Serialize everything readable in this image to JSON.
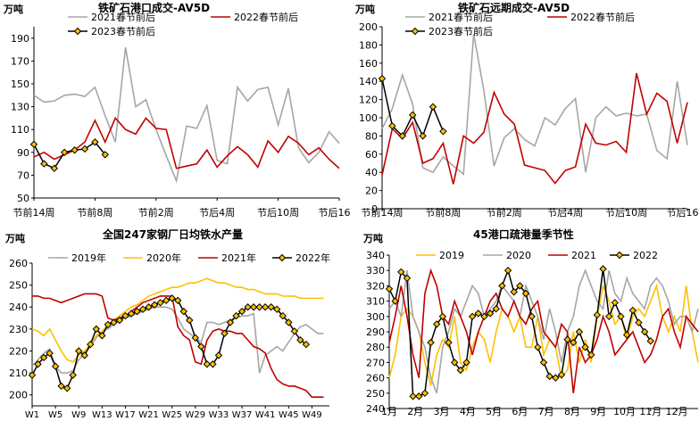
{
  "colors": {
    "gray": "#a6a6a6",
    "red": "#c00000",
    "yellow": "#ffc000",
    "black": "#000000",
    "marker_fill": "#ffc000"
  },
  "chart_data": [
    {
      "type": "line",
      "title": "铁矿石港口成交-AV5D",
      "ylabel": "万吨",
      "ylim": [
        50,
        200
      ],
      "yticks": [
        50,
        70,
        90,
        110,
        130,
        150,
        170,
        190
      ],
      "x_tick_labels": [
        "节前14周",
        "节前8周",
        "节前2周",
        "节后4周",
        "节后10周",
        "节后16周"
      ],
      "x_count": 31,
      "legend": [
        "2021春节前后",
        "2022春节前后",
        "2023春节前后"
      ],
      "series": [
        {
          "name": "2021春节前后",
          "color": "gray",
          "x_start": 0,
          "values": [
            140,
            134,
            135,
            140,
            141,
            139,
            147,
            122,
            99,
            182,
            130,
            136,
            110,
            87,
            65,
            113,
            111,
            131,
            83,
            80,
            147,
            135,
            145,
            147,
            114,
            146,
            94,
            81,
            90,
            108,
            98
          ]
        },
        {
          "name": "2022春节前后",
          "color": "red",
          "x_start": 0,
          "values": [
            86,
            90,
            84,
            88,
            92,
            99,
            118,
            99,
            120,
            110,
            106,
            120,
            111,
            110,
            76,
            78,
            80,
            92,
            77,
            87,
            95,
            88,
            77,
            100,
            90,
            104,
            98,
            88,
            94,
            84,
            76
          ]
        },
        {
          "name": "2023春节前后",
          "color": "black",
          "x_start": 0,
          "marker": true,
          "values": [
            97,
            80,
            76,
            90,
            92,
            93,
            99,
            88
          ]
        }
      ]
    },
    {
      "type": "line",
      "title": "铁矿石远期成交-AV5D",
      "ylabel": "万吨",
      "ylim": [
        0,
        200
      ],
      "yticks": [
        0,
        20,
        40,
        60,
        80,
        100,
        120,
        140,
        160,
        180,
        200
      ],
      "x_tick_labels": [
        "节前14周",
        "节前8周",
        "节前2周",
        "节后4周",
        "节后10周",
        "节后16周"
      ],
      "x_count": 31,
      "legend": [
        "2021春节前后",
        "2022春节前后",
        "2023春节前后"
      ],
      "series": [
        {
          "name": "2021春节前后",
          "color": "gray",
          "x_start": 0,
          "values": [
            88,
            110,
            147,
            115,
            45,
            40,
            57,
            47,
            38,
            192,
            130,
            47,
            78,
            88,
            76,
            69,
            100,
            92,
            110,
            121,
            40,
            100,
            112,
            102,
            105,
            102,
            104,
            64,
            55,
            140,
            70
          ]
        },
        {
          "name": "2022春节前后",
          "color": "red",
          "x_start": 0,
          "values": [
            37,
            88,
            77,
            95,
            50,
            55,
            72,
            27,
            80,
            72,
            84,
            128,
            104,
            93,
            48,
            45,
            42,
            28,
            42,
            46,
            93,
            72,
            70,
            74,
            62,
            149,
            104,
            127,
            118,
            72,
            117
          ]
        },
        {
          "name": "2023春节前后",
          "color": "black",
          "x_start": 0,
          "marker": true,
          "values": [
            143,
            91,
            80,
            103,
            80,
            112,
            85
          ]
        }
      ]
    },
    {
      "type": "line",
      "title": "全国247家钢厂日均铁水产量",
      "ylabel": "万吨",
      "ylim": [
        195,
        260
      ],
      "yticks": [
        200,
        210,
        220,
        230,
        240,
        250,
        260
      ],
      "x_tick_labels": [
        "W1",
        "W5",
        "W9",
        "W13",
        "W17",
        "W21",
        "W25",
        "W29",
        "W33",
        "W37",
        "W41",
        "W45",
        "W49"
      ],
      "x_count": 52,
      "legend": [
        "2019年",
        "2020年",
        "2021年",
        "2022年"
      ],
      "series": [
        {
          "name": "2019年",
          "color": "gray",
          "x_start": 0,
          "values": [
            213,
            216,
            219,
            221,
            213,
            210,
            210,
            211,
            216,
            219,
            222,
            226,
            229,
            230,
            232,
            234,
            235,
            236,
            237,
            238,
            239,
            240,
            240,
            240,
            239,
            235,
            230,
            228,
            226,
            224,
            233,
            233,
            232,
            233,
            234,
            235,
            236,
            236,
            237,
            210,
            218,
            220,
            222,
            220,
            224,
            228,
            231,
            232,
            230,
            228,
            228
          ]
        },
        {
          "name": "2020年",
          "color": "yellow",
          "x_start": 0,
          "values": [
            230,
            229,
            227,
            230,
            225,
            220,
            216,
            215,
            218,
            220,
            223,
            227,
            229,
            232,
            234,
            236,
            238,
            240,
            241,
            243,
            245,
            246,
            247,
            248,
            249,
            249,
            250,
            251,
            251,
            252,
            253,
            252,
            251,
            251,
            250,
            249,
            249,
            248,
            248,
            247,
            246,
            246,
            246,
            245,
            245,
            245,
            244,
            244,
            244,
            244,
            244
          ]
        },
        {
          "name": "2021年",
          "color": "red",
          "x_start": 0,
          "values": [
            245,
            245,
            244,
            244,
            243,
            242,
            243,
            244,
            245,
            246,
            246,
            246,
            245,
            235,
            234,
            235,
            236,
            238,
            240,
            242,
            243,
            244,
            245,
            245,
            245,
            231,
            227,
            225,
            215,
            214,
            225,
            229,
            230,
            229,
            229,
            228,
            228,
            225,
            222,
            221,
            219,
            212,
            207,
            205,
            204,
            204,
            203,
            202,
            199,
            199,
            199
          ]
        },
        {
          "name": "2022年",
          "color": "black",
          "x_start": 0,
          "marker": true,
          "values": [
            209,
            214,
            217,
            219,
            213,
            204,
            203,
            209,
            220,
            218,
            223,
            230,
            227,
            232,
            233,
            234,
            236,
            237,
            238,
            239,
            240,
            241,
            242,
            243,
            244,
            243,
            238,
            234,
            226,
            222,
            214,
            214,
            218,
            228,
            233,
            236,
            238,
            240,
            240,
            240,
            240,
            240,
            239,
            236,
            233,
            229,
            225,
            223
          ]
        }
      ]
    },
    {
      "type": "line",
      "title": "45港口疏港量季节性",
      "ylabel": "万吨",
      "ylim": [
        240,
        340
      ],
      "yticks": [
        240,
        250,
        260,
        270,
        280,
        290,
        300,
        310,
        320,
        330,
        340
      ],
      "x_tick_labels": [
        "1月",
        "2月",
        "3月",
        "4月",
        "5月",
        "6月",
        "7月",
        "8月",
        "9月",
        "10月",
        "11月",
        "12月"
      ],
      "x_count": 53,
      "legend": [
        "2019",
        "2020",
        "2021",
        "2022"
      ],
      "series": [
        {
          "name": "2019",
          "color": "yellow",
          "x_start": 0,
          "values": [
            260,
            275,
            300,
            305,
            300,
            290,
            270,
            255,
            275,
            285,
            280,
            300,
            270,
            265,
            280,
            290,
            285,
            270,
            290,
            305,
            300,
            290,
            300,
            280,
            280,
            300,
            275,
            285,
            280,
            260,
            265,
            290,
            270,
            285,
            270,
            300,
            320,
            310,
            295,
            300,
            285,
            300,
            305,
            300,
            310,
            320,
            300,
            290,
            300,
            290,
            320,
            290,
            270
          ]
        },
        {
          "name": "2020",
          "color": "gray",
          "x_start": 0,
          "values": [
            305,
            310,
            300,
            330,
            300,
            290,
            280,
            260,
            250,
            280,
            290,
            305,
            300,
            310,
            320,
            315,
            300,
            305,
            310,
            320,
            315,
            310,
            300,
            320,
            310,
            300,
            285,
            305,
            290,
            270,
            290,
            300,
            320,
            330,
            320,
            310,
            305,
            330,
            315,
            310,
            325,
            315,
            310,
            305,
            320,
            325,
            320,
            310,
            295,
            300,
            300,
            290,
            305
          ]
        },
        {
          "name": "2021",
          "color": "red",
          "x_start": 0,
          "values": [
            283,
            300,
            320,
            300,
            275,
            260,
            315,
            330,
            320,
            300,
            295,
            310,
            300,
            290,
            275,
            290,
            300,
            310,
            315,
            305,
            300,
            310,
            300,
            295,
            305,
            310,
            290,
            285,
            280,
            295,
            290,
            250,
            280,
            270,
            275,
            285,
            300,
            290,
            275,
            280,
            285,
            290,
            280,
            270,
            275,
            285,
            300,
            305,
            290,
            280,
            300,
            295,
            290
          ]
        },
        {
          "name": "2022",
          "color": "black",
          "x_start": 0,
          "marker": true,
          "values": [
            318,
            310,
            329,
            325,
            248,
            248,
            250,
            283,
            295,
            300,
            283,
            270,
            265,
            270,
            300,
            302,
            300,
            302,
            305,
            320,
            330,
            316,
            320,
            315,
            300,
            280,
            270,
            261,
            260,
            262,
            285,
            283,
            290,
            280,
            275,
            301,
            331,
            300,
            309,
            300,
            288,
            304,
            296,
            290,
            284
          ]
        }
      ]
    }
  ]
}
